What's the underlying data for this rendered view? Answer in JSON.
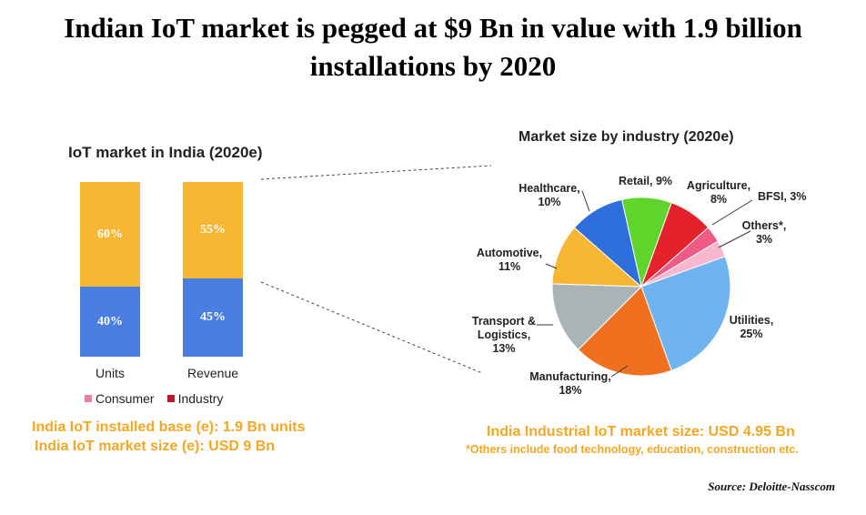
{
  "title_line1": "Indian IoT market is pegged at $9 Bn in value with 1.9 billion",
  "title_line2": "installations by 2020",
  "source": "Source: Deloitte-Nasscom",
  "chart_data": [
    {
      "type": "bar",
      "stacked": true,
      "title": "IoT market in India (2020e)",
      "categories": [
        "Units",
        "Revenue"
      ],
      "series": [
        {
          "name": "Consumer",
          "values": [
            60,
            55
          ],
          "color": "#f7b733",
          "value_labels": [
            "60%",
            "55%"
          ],
          "legend_color": "#e8829a"
        },
        {
          "name": "Industry",
          "values": [
            40,
            45
          ],
          "color": "#4a7ee0",
          "value_labels": [
            "40%",
            "45%"
          ],
          "legend_color": "#c0162a"
        }
      ],
      "ylim": [
        0,
        100
      ],
      "legend": "bottom",
      "notes": [
        "India IoT installed base (e): 1.9 Bn units",
        "India IoT market size (e): USD 9 Bn"
      ]
    },
    {
      "type": "pie",
      "title": "Market size by industry (2020e)",
      "slices": [
        {
          "label": "Retail, 9%",
          "value": 9,
          "color": "#5fd42a"
        },
        {
          "label": "Agriculture, 8%",
          "value": 8,
          "color": "#e3222b"
        },
        {
          "label": "BFSI, 3%",
          "value": 3,
          "color": "#ef5a86"
        },
        {
          "label": "Others*, 3%",
          "value": 3,
          "color": "#f8b7cc"
        },
        {
          "label": "Utilities, 25%",
          "value": 25,
          "color": "#6fb3f0"
        },
        {
          "label": "Manufacturing, 18%",
          "value": 18,
          "color": "#f07020"
        },
        {
          "label": "Transport & Logistics, 13%",
          "value": 13,
          "color": "#aab3b6"
        },
        {
          "label": "Automotive, 11%",
          "value": 11,
          "color": "#f7b733"
        },
        {
          "label": "Healthcare, 10%",
          "value": 10,
          "color": "#2f6fdc"
        }
      ],
      "notes": [
        "India Industrial IoT market size: USD 4.95 Bn",
        "*Others include food technology, education, construction etc."
      ]
    }
  ]
}
